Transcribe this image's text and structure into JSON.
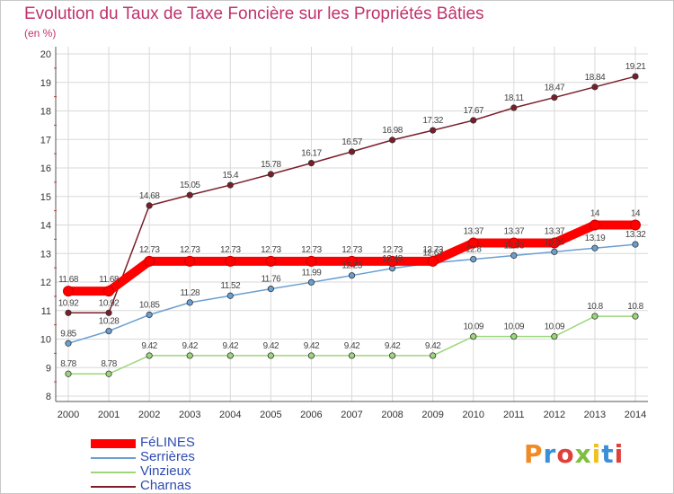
{
  "header": {
    "title": "Evolution du Taux de Taxe Foncière sur les Propriétés Bâties",
    "unit": "(en %)"
  },
  "brand": {
    "logo": "Proxiti"
  },
  "colors": {
    "title": "#c0326c",
    "legend_text": "#2e4bb0",
    "grid": "#d9d9d9",
    "axis": "#555555"
  },
  "chart_data": {
    "type": "line",
    "title": "Evolution du Taux de Taxe Foncière sur les Propriétés Bâties",
    "ylabel": "(en %)",
    "xlabel": "",
    "ylim": [
      8,
      20
    ],
    "yticks": [
      "8",
      "9",
      "10",
      "11",
      "12",
      "13",
      "14",
      "15",
      "16",
      "17",
      "18",
      "19",
      "20"
    ],
    "grid": true,
    "x": [
      "2000",
      "2001",
      "2002",
      "2003",
      "2004",
      "2005",
      "2006",
      "2007",
      "2008",
      "2009",
      "2010",
      "2011",
      "2012",
      "2013",
      "2014"
    ],
    "series": [
      {
        "name": "Charnas",
        "color": "#7b1e2a",
        "values": [
          10.92,
          10.92,
          14.68,
          15.05,
          15.4,
          15.78,
          16.17,
          16.57,
          16.98,
          17.32,
          17.67,
          18.11,
          18.47,
          18.84,
          19.21
        ],
        "labels": [
          "10.92",
          "10.92",
          "14.68",
          "15.05",
          "15.4",
          "15.78",
          "16.17",
          "16.57",
          "16.98",
          "17.32",
          "17.67",
          "18.11",
          "18.47",
          "18.84",
          "19.21"
        ]
      },
      {
        "name": "Serrières",
        "color": "#6b9fd1",
        "values": [
          9.85,
          10.28,
          10.85,
          11.28,
          11.52,
          11.76,
          11.99,
          12.23,
          12.48,
          12.67,
          12.8,
          12.93,
          13.06,
          13.19,
          13.32
        ],
        "labels": [
          "9.85",
          "10.28",
          "10.85",
          "11.28",
          "11.52",
          "11.76",
          "11.99",
          "12.23",
          "12.48",
          "12.67",
          "12.8",
          "12.93",
          "13.06",
          "13.19",
          "13.32"
        ]
      },
      {
        "name": "Vinzieux",
        "color": "#9bd77a",
        "values": [
          8.78,
          8.78,
          9.42,
          9.42,
          9.42,
          9.42,
          9.42,
          9.42,
          9.42,
          9.42,
          10.09,
          10.09,
          10.09,
          10.8,
          10.8
        ],
        "labels": [
          "8.78",
          "8.78",
          "9.42",
          "9.42",
          "9.42",
          "9.42",
          "9.42",
          "9.42",
          "9.42",
          "9.42",
          "10.09",
          "10.09",
          "10.09",
          "10.8",
          "10.8"
        ]
      },
      {
        "name": "FéLINES",
        "color": "#ff0000",
        "values": [
          11.68,
          11.68,
          12.73,
          12.73,
          12.73,
          12.73,
          12.73,
          12.73,
          12.73,
          12.73,
          13.37,
          13.37,
          13.37,
          14,
          14
        ],
        "labels": [
          "11.68",
          "11.68",
          "12.73",
          "12.73",
          "12.73",
          "12.73",
          "12.73",
          "12.73",
          "12.73",
          "12.73",
          "13.37",
          "13.37",
          "13.37",
          "14",
          "14"
        ]
      }
    ],
    "legend": [
      "FéLINES",
      "Serrières",
      "Vinzieux",
      "Charnas"
    ],
    "legend_position": "bottom-left"
  }
}
